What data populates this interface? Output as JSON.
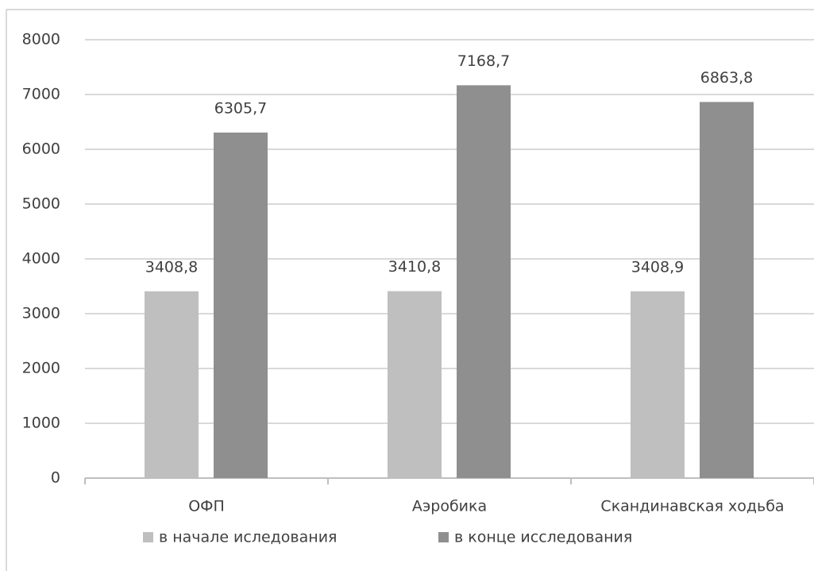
{
  "chart_data": {
    "type": "bar",
    "categories": [
      "ОФП",
      "Аэробика",
      "Скандинавская ходьба"
    ],
    "series": [
      {
        "name": "в начале иследования",
        "color": "#bfbfbf",
        "values": [
          3408.8,
          3410.8,
          3408.9
        ],
        "value_labels": [
          "3408,8",
          "3410,8",
          "3408,9"
        ]
      },
      {
        "name": "в конце исследования",
        "color": "#8f8f8f",
        "values": [
          6305.7,
          7168.7,
          6863.8
        ],
        "value_labels": [
          "6305,7",
          "7168,7",
          "6863,8"
        ]
      }
    ],
    "ylim": [
      0,
      8000
    ],
    "yticks": [
      0,
      1000,
      2000,
      3000,
      4000,
      5000,
      6000,
      7000,
      8000
    ],
    "grid": true,
    "legend": "bottom"
  }
}
